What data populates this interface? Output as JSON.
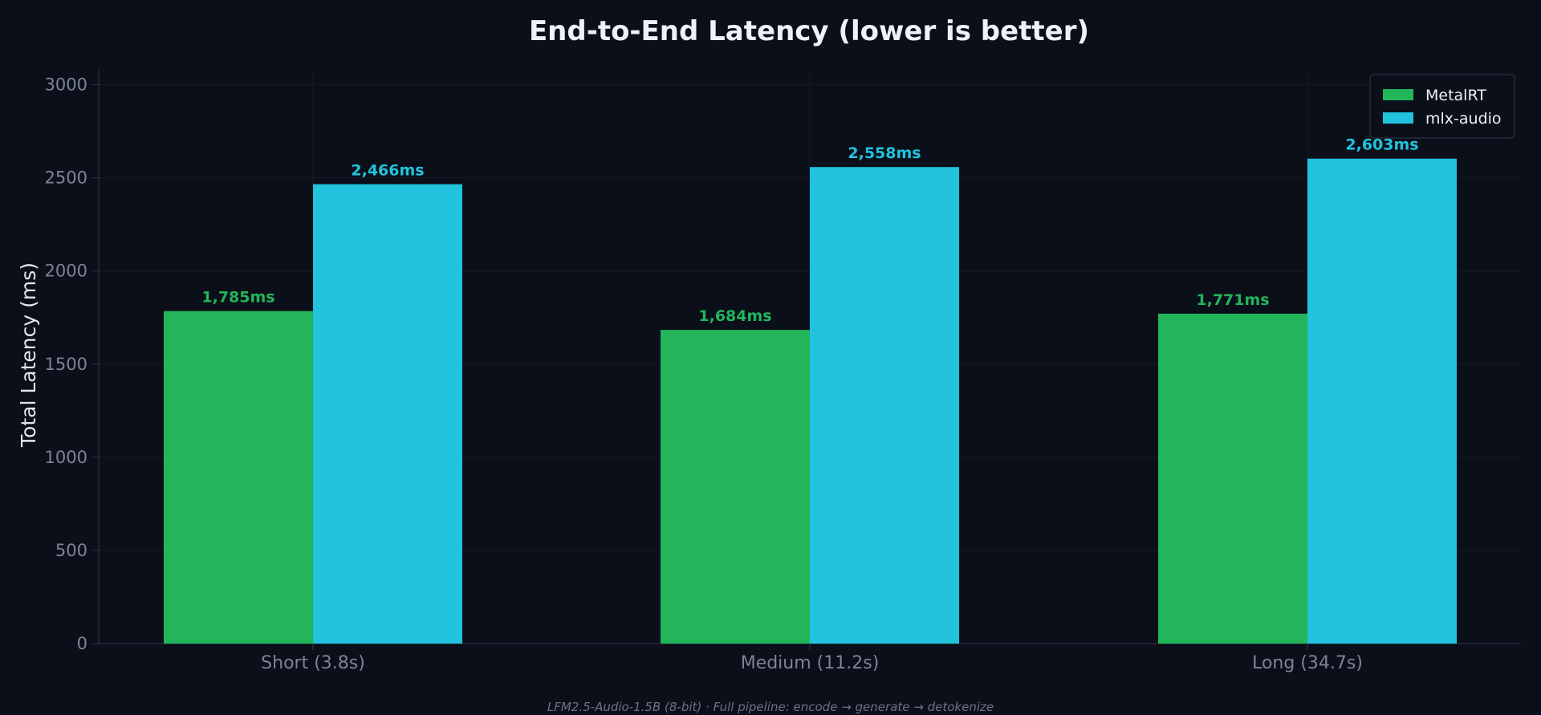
{
  "chart_data": {
    "type": "bar",
    "title": "End-to-End Latency (lower is better)",
    "xlabel": "",
    "ylabel": "Total Latency (ms)",
    "categories": [
      "Short (3.8s)",
      "Medium (11.2s)",
      "Long (34.7s)"
    ],
    "series": [
      {
        "name": "MetalRT",
        "color": "#22b55a",
        "values": [
          1785,
          1684,
          1771
        ],
        "labels": [
          "1,785ms",
          "1,684ms",
          "1,771ms"
        ]
      },
      {
        "name": "mlx-audio",
        "color": "#22c3dd",
        "values": [
          2466,
          2558,
          2603
        ],
        "labels": [
          "2,466ms",
          "2,558ms",
          "2,603ms"
        ]
      }
    ],
    "ylim": [
      0,
      3080
    ],
    "yticks": [
      0,
      500,
      1000,
      1500,
      2000,
      2500,
      3000
    ],
    "grid": true,
    "legend_position": "top-right",
    "footnote": "LFM2.5-Audio-1.5B (8-bit) · Full pipeline: encode → generate → detokenize"
  },
  "colors": {
    "background": "#0b0f19",
    "grid": "#161b26",
    "axis": "#2a3140"
  }
}
